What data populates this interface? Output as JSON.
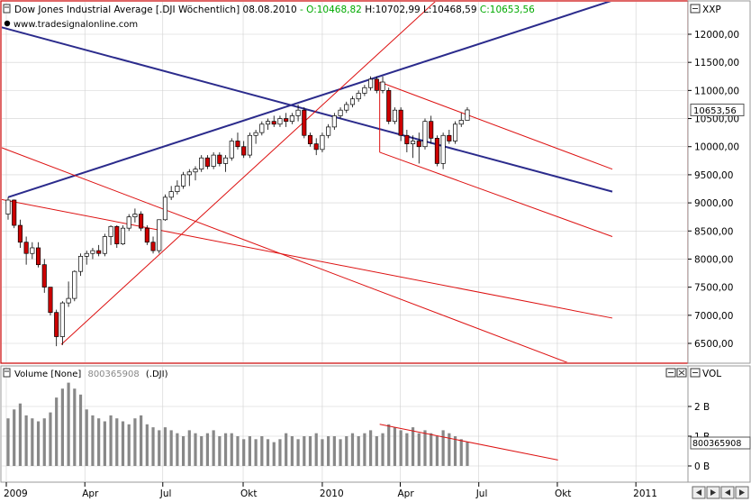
{
  "header": {
    "title": "Dow Jones Industrial Average [.DJI  Wöchentlich] 08.08.2010",
    "ohlc": [
      {
        "text": " - O:10468,82",
        "color": "#00aa00"
      },
      {
        "text": " H:10702,99 L:10468,59",
        "color": "#000000"
      },
      {
        "text": " C:10653,56",
        "color": "#00aa00"
      }
    ],
    "watermark": "www.tradesignalonline.com"
  },
  "price_axis": {
    "ticks": [
      "12000,00",
      "11500,00",
      "11000,00",
      "10500,00",
      "10000,00",
      "9500,00",
      "9000,00",
      "8500,00",
      "8000,00",
      "7500,00",
      "7000,00",
      "6500,00"
    ],
    "last_price_label": "10653,56",
    "corner_label": "XXP"
  },
  "volume_panel": {
    "title": "Volume [None]",
    "last_value": "800365908",
    "instrument": "(.DJI)",
    "corner_label": "VOL",
    "ticks": [
      "2 B",
      "1 B",
      "0 B"
    ],
    "last_value_label": "800365908"
  },
  "time_axis": {
    "labels": [
      "2009",
      "Apr",
      "Jul",
      "Okt",
      "2010",
      "Apr",
      "Jul",
      "Okt",
      "2011"
    ]
  },
  "colors": {
    "up_fill": "#ffffff",
    "down_fill": "#cc0000",
    "trendline_blue": "#2b2b8c",
    "trendline_red": "#dd1111",
    "grid": "#d0d0d0",
    "volume_bar": "#888888",
    "frame_red": "#cc0000"
  },
  "icons": [
    "window-menu-icon",
    "resize-icon",
    "close-icon",
    "scroll-left-icon",
    "scroll-right-icon"
  ],
  "chart_data": [
    {
      "type": "candlestick",
      "title": "Dow Jones Industrial Average",
      "instrument": ".DJI",
      "interval": "Wöchentlich",
      "date": "08.08.2010",
      "ylim": [
        6200,
        12500
      ],
      "x_start": "2008-12-29",
      "candles": [
        {
          "o": 8800,
          "h": 9100,
          "l": 8700,
          "c": 9050
        },
        {
          "o": 9050,
          "h": 9060,
          "l": 8550,
          "c": 8600
        },
        {
          "o": 8600,
          "h": 8700,
          "l": 8200,
          "c": 8300
        },
        {
          "o": 8300,
          "h": 8400,
          "l": 7900,
          "c": 8100
        },
        {
          "o": 8100,
          "h": 8300,
          "l": 8000,
          "c": 8200
        },
        {
          "o": 8200,
          "h": 8300,
          "l": 7850,
          "c": 7900
        },
        {
          "o": 7900,
          "h": 8000,
          "l": 7400,
          "c": 7500
        },
        {
          "o": 7500,
          "h": 7500,
          "l": 7000,
          "c": 7050
        },
        {
          "o": 7050,
          "h": 7100,
          "l": 6450,
          "c": 6620
        },
        {
          "o": 6620,
          "h": 7250,
          "l": 6470,
          "c": 7220
        },
        {
          "o": 7220,
          "h": 7600,
          "l": 7150,
          "c": 7300
        },
        {
          "o": 7300,
          "h": 7800,
          "l": 7250,
          "c": 7780
        },
        {
          "o": 7780,
          "h": 8100,
          "l": 7700,
          "c": 8050
        },
        {
          "o": 8050,
          "h": 8150,
          "l": 7900,
          "c": 8100
        },
        {
          "o": 8100,
          "h": 8200,
          "l": 8000,
          "c": 8150
        },
        {
          "o": 8150,
          "h": 8250,
          "l": 8050,
          "c": 8100
        },
        {
          "o": 8100,
          "h": 8450,
          "l": 8050,
          "c": 8400
        },
        {
          "o": 8400,
          "h": 8600,
          "l": 8250,
          "c": 8580
        },
        {
          "o": 8580,
          "h": 8600,
          "l": 8200,
          "c": 8270
        },
        {
          "o": 8270,
          "h": 8600,
          "l": 8250,
          "c": 8550
        },
        {
          "o": 8550,
          "h": 8800,
          "l": 8500,
          "c": 8750
        },
        {
          "o": 8750,
          "h": 8900,
          "l": 8650,
          "c": 8800
        },
        {
          "o": 8800,
          "h": 8850,
          "l": 8500,
          "c": 8550
        },
        {
          "o": 8550,
          "h": 8600,
          "l": 8250,
          "c": 8300
        },
        {
          "o": 8300,
          "h": 8400,
          "l": 8100,
          "c": 8150
        },
        {
          "o": 8150,
          "h": 8700,
          "l": 8100,
          "c": 8700
        },
        {
          "o": 8700,
          "h": 9150,
          "l": 8680,
          "c": 9100
        },
        {
          "o": 9100,
          "h": 9300,
          "l": 9050,
          "c": 9200
        },
        {
          "o": 9200,
          "h": 9400,
          "l": 9150,
          "c": 9300
        },
        {
          "o": 9300,
          "h": 9550,
          "l": 9250,
          "c": 9500
        },
        {
          "o": 9500,
          "h": 9600,
          "l": 9300,
          "c": 9550
        },
        {
          "o": 9550,
          "h": 9650,
          "l": 9400,
          "c": 9600
        },
        {
          "o": 9600,
          "h": 9850,
          "l": 9550,
          "c": 9800
        },
        {
          "o": 9800,
          "h": 9850,
          "l": 9600,
          "c": 9650
        },
        {
          "o": 9650,
          "h": 9900,
          "l": 9600,
          "c": 9850
        },
        {
          "o": 9850,
          "h": 9900,
          "l": 9650,
          "c": 9700
        },
        {
          "o": 9700,
          "h": 9850,
          "l": 9550,
          "c": 9800
        },
        {
          "o": 9800,
          "h": 10150,
          "l": 9750,
          "c": 10100
        },
        {
          "o": 10100,
          "h": 10250,
          "l": 9950,
          "c": 10000
        },
        {
          "o": 10000,
          "h": 10100,
          "l": 9800,
          "c": 9850
        },
        {
          "o": 9850,
          "h": 10250,
          "l": 9800,
          "c": 10200
        },
        {
          "o": 10200,
          "h": 10300,
          "l": 10050,
          "c": 10250
        },
        {
          "o": 10250,
          "h": 10450,
          "l": 10200,
          "c": 10400
        },
        {
          "o": 10400,
          "h": 10500,
          "l": 10300,
          "c": 10450
        },
        {
          "o": 10450,
          "h": 10550,
          "l": 10350,
          "c": 10400
        },
        {
          "o": 10400,
          "h": 10550,
          "l": 10350,
          "c": 10500
        },
        {
          "o": 10500,
          "h": 10600,
          "l": 10350,
          "c": 10450
        },
        {
          "o": 10450,
          "h": 10600,
          "l": 10400,
          "c": 10550
        },
        {
          "o": 10550,
          "h": 10750,
          "l": 10450,
          "c": 10650
        },
        {
          "o": 10650,
          "h": 10700,
          "l": 10150,
          "c": 10200
        },
        {
          "o": 10200,
          "h": 10250,
          "l": 10000,
          "c": 10050
        },
        {
          "o": 10050,
          "h": 10150,
          "l": 9850,
          "c": 9950
        },
        {
          "o": 9950,
          "h": 10250,
          "l": 9900,
          "c": 10200
        },
        {
          "o": 10200,
          "h": 10400,
          "l": 10150,
          "c": 10350
        },
        {
          "o": 10350,
          "h": 10600,
          "l": 10300,
          "c": 10550
        },
        {
          "o": 10550,
          "h": 10700,
          "l": 10500,
          "c": 10650
        },
        {
          "o": 10650,
          "h": 10800,
          "l": 10600,
          "c": 10750
        },
        {
          "o": 10750,
          "h": 10900,
          "l": 10700,
          "c": 10850
        },
        {
          "o": 10850,
          "h": 11000,
          "l": 10800,
          "c": 10950
        },
        {
          "o": 10950,
          "h": 11100,
          "l": 10900,
          "c": 11050
        },
        {
          "o": 11050,
          "h": 11250,
          "l": 11000,
          "c": 11200
        },
        {
          "o": 11200,
          "h": 11250,
          "l": 10950,
          "c": 11000
        },
        {
          "o": 11000,
          "h": 11250,
          "l": 10950,
          "c": 11150
        },
        {
          "o": 11000,
          "h": 11050,
          "l": 10400,
          "c": 10450
        },
        {
          "o": 10450,
          "h": 10700,
          "l": 10400,
          "c": 10650
        },
        {
          "o": 10650,
          "h": 10700,
          "l": 10100,
          "c": 10200
        },
        {
          "o": 10200,
          "h": 10300,
          "l": 9900,
          "c": 10050
        },
        {
          "o": 10050,
          "h": 10200,
          "l": 9800,
          "c": 10100
        },
        {
          "o": 10100,
          "h": 10250,
          "l": 9700,
          "c": 10000
        },
        {
          "o": 10000,
          "h": 10500,
          "l": 9950,
          "c": 10450
        },
        {
          "o": 10450,
          "h": 10550,
          "l": 10050,
          "c": 10150
        },
        {
          "o": 10150,
          "h": 10200,
          "l": 9650,
          "c": 9700
        },
        {
          "o": 9700,
          "h": 10250,
          "l": 9600,
          "c": 10200
        },
        {
          "o": 10200,
          "h": 10300,
          "l": 10050,
          "c": 10100
        },
        {
          "o": 10100,
          "h": 10450,
          "l": 10050,
          "c": 10400
        },
        {
          "o": 10400,
          "h": 10600,
          "l": 10350,
          "c": 10470
        },
        {
          "o": 10468.82,
          "h": 10702.99,
          "l": 10468.59,
          "c": 10653.56
        }
      ],
      "trendlines": [
        {
          "color": "blue",
          "from": {
            "t": 0,
            "y": 9100
          },
          "to": {
            "t": 100,
            "y": 12600
          }
        },
        {
          "color": "blue",
          "from": {
            "t": -2,
            "y": 12150
          },
          "to": {
            "t": 100,
            "y": 9200
          }
        },
        {
          "color": "red",
          "from": {
            "t": 8.8,
            "y": 6480
          },
          "to": {
            "t": 80,
            "y": 13500
          }
        },
        {
          "color": "red",
          "from": {
            "t": -2,
            "y": 9080
          },
          "to": {
            "t": 100,
            "y": 6950
          }
        },
        {
          "color": "red",
          "from": {
            "t": -2,
            "y": 10020
          },
          "to": {
            "t": 94,
            "y": 6100
          }
        },
        {
          "color": "red",
          "from": {
            "t": 61.5,
            "y": 11150
          },
          "to": {
            "t": 100,
            "y": 9600
          }
        },
        {
          "color": "red",
          "from": {
            "t": 61.5,
            "y": 9900
          },
          "to": {
            "t": 100,
            "y": 8400
          }
        },
        {
          "color": "red",
          "from": {
            "t": 61.5,
            "y": 9900
          },
          "to": {
            "t": 61.5,
            "y": 11150
          }
        }
      ]
    },
    {
      "type": "bar",
      "title": "Volume [None]",
      "ylim": [
        0,
        3
      ],
      "unit": "B",
      "values": [
        1.6,
        1.9,
        2.1,
        1.7,
        1.6,
        1.5,
        1.6,
        1.8,
        2.3,
        2.6,
        2.8,
        2.6,
        2.4,
        1.9,
        1.7,
        1.6,
        1.5,
        1.7,
        1.6,
        1.5,
        1.4,
        1.6,
        1.7,
        1.4,
        1.3,
        1.2,
        1.3,
        1.2,
        1.1,
        1.0,
        1.2,
        1.1,
        1.0,
        1.1,
        1.2,
        1.0,
        1.1,
        1.1,
        1.0,
        0.9,
        1.0,
        0.9,
        1.0,
        0.9,
        0.8,
        0.9,
        1.1,
        1.0,
        0.9,
        1.0,
        1.0,
        1.1,
        0.9,
        1.0,
        1.0,
        0.9,
        1.0,
        1.1,
        1.0,
        1.1,
        1.2,
        1.0,
        1.1,
        1.4,
        1.3,
        1.2,
        1.1,
        1.3,
        1.1,
        1.2,
        1.1,
        1.0,
        1.2,
        1.1,
        1.0,
        0.9,
        0.8
      ],
      "trendline": {
        "from": {
          "t": 61.5,
          "v": 1.4
        },
        "to": {
          "t": 91,
          "v": 0.2
        }
      }
    }
  ]
}
